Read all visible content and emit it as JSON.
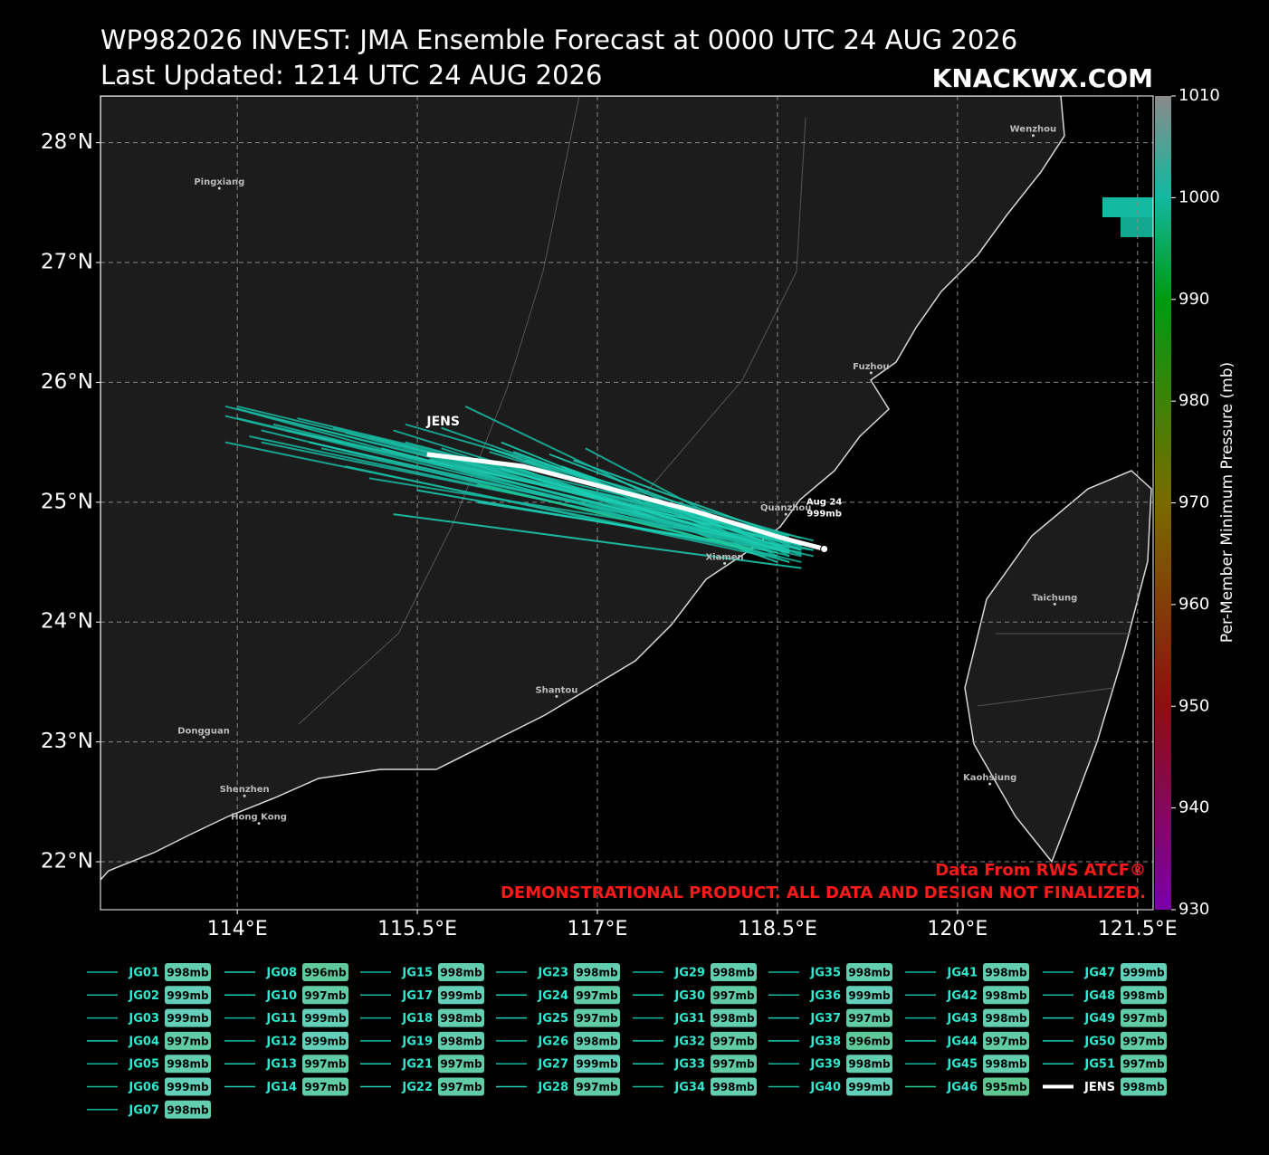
{
  "chart_data": {
    "type": "track",
    "title": "WP982026 INVEST: JMA Ensemble Forecast at 0000 UTC 24 AUG 2026",
    "subtitle": "Last Updated: 1214 UTC 24 AUG 2026",
    "brand": "KNACKWX.COM",
    "xlim": [
      112.86,
      121.63
    ],
    "ylim": [
      21.6,
      28.39
    ],
    "xticks": [
      {
        "value": 114,
        "label": "114°E"
      },
      {
        "value": 115.5,
        "label": "115.5°E"
      },
      {
        "value": 117,
        "label": "117°E"
      },
      {
        "value": 118.5,
        "label": "118.5°E"
      },
      {
        "value": 120,
        "label": "120°E"
      },
      {
        "value": 121.5,
        "label": "121.5°E"
      }
    ],
    "yticks": [
      {
        "value": 22,
        "label": "22°N"
      },
      {
        "value": 23,
        "label": "23°N"
      },
      {
        "value": 24,
        "label": "24°N"
      },
      {
        "value": 25,
        "label": "25°N"
      },
      {
        "value": 26,
        "label": "26°N"
      },
      {
        "value": 27,
        "label": "27°N"
      },
      {
        "value": 28,
        "label": "28°N"
      }
    ],
    "grid": true,
    "colorbar": {
      "label": "Per-Member Minimum Pressure (mb)",
      "lim": [
        930,
        1010
      ],
      "ticks": [
        930,
        940,
        950,
        960,
        970,
        980,
        990,
        1000,
        1010
      ],
      "colormap": [
        [
          930,
          "#7a00a8"
        ],
        [
          950,
          "#8a1010"
        ],
        [
          970,
          "#7a6a00"
        ],
        [
          990,
          "#009a10"
        ],
        [
          1000,
          "#12b8a0"
        ],
        [
          1010,
          "#8a8a8a"
        ]
      ]
    },
    "cities": [
      {
        "name": "Wenzhou",
        "lon": 120.63,
        "lat": 28.06
      },
      {
        "name": "Pingxiang",
        "lon": 113.85,
        "lat": 27.62
      },
      {
        "name": "Fuzhou",
        "lon": 119.28,
        "lat": 26.08
      },
      {
        "name": "Quanzhou",
        "lon": 118.57,
        "lat": 24.9
      },
      {
        "name": "Xiamen",
        "lon": 118.06,
        "lat": 24.49
      },
      {
        "name": "Taichung",
        "lon": 120.81,
        "lat": 24.15
      },
      {
        "name": "Shantou",
        "lon": 116.66,
        "lat": 23.38
      },
      {
        "name": "Dongguan",
        "lon": 113.72,
        "lat": 23.04
      },
      {
        "name": "Shenzhen",
        "lon": 114.06,
        "lat": 22.55
      },
      {
        "name": "Hong Kong",
        "lon": 114.18,
        "lat": 22.32
      },
      {
        "name": "Kaohsiung",
        "lon": 120.27,
        "lat": 22.65
      }
    ],
    "annotations": {
      "track_label": "JENS",
      "date": "Aug 24",
      "pressure": "999mb",
      "source": "Data From RWS ATCF®",
      "disclaimer": "DEMONSTRATIONAL PRODUCT. ALL DATA AND DESIGN NOT FINALIZED."
    },
    "series": [
      {
        "name": "JG01",
        "color": "#17b8a0",
        "x": [
          113.9,
          118.6
        ],
        "y": [
          25.8,
          24.65
        ],
        "min_pressure": 998,
        "min_pressure_label": "998mb"
      },
      {
        "name": "JG02",
        "color": "#17b8a0",
        "x": [
          114.0,
          118.7
        ],
        "y": [
          25.7,
          24.6
        ],
        "min_pressure": 999,
        "min_pressure_label": "999mb"
      },
      {
        "name": "JG03",
        "color": "#17b8a0",
        "x": [
          113.9,
          118.5
        ],
        "y": [
          25.5,
          24.55
        ],
        "min_pressure": 999,
        "min_pressure_label": "999mb"
      },
      {
        "name": "JG04",
        "color": "#1ccfb4",
        "x": [
          114.4,
          118.6
        ],
        "y": [
          25.6,
          24.7
        ],
        "min_pressure": 997,
        "min_pressure_label": "997mb"
      },
      {
        "name": "JG05",
        "color": "#17b8a0",
        "x": [
          114.9,
          118.4
        ],
        "y": [
          25.3,
          24.55
        ],
        "min_pressure": 998,
        "min_pressure_label": "998mb"
      },
      {
        "name": "JG06",
        "color": "#17b8a0",
        "x": [
          114.1,
          118.6
        ],
        "y": [
          25.75,
          24.5
        ],
        "min_pressure": 999,
        "min_pressure_label": "999mb"
      },
      {
        "name": "JG07",
        "color": "#17b8a0",
        "x": [
          115.4,
          118.7
        ],
        "y": [
          25.65,
          24.7
        ],
        "min_pressure": 998,
        "min_pressure_label": "998mb"
      },
      {
        "name": "JG08",
        "color": "#1ccfb4",
        "x": [
          116.2,
          118.4
        ],
        "y": [
          25.5,
          24.6
        ],
        "min_pressure": 996,
        "min_pressure_label": "996mb"
      },
      {
        "name": "JG10",
        "color": "#1ccfb4",
        "x": [
          116.8,
          118.6
        ],
        "y": [
          25.35,
          24.7
        ],
        "min_pressure": 997,
        "min_pressure_label": "997mb"
      },
      {
        "name": "JG11",
        "color": "#17b8a0",
        "x": [
          115.9,
          118.5
        ],
        "y": [
          25.8,
          24.55
        ],
        "min_pressure": 999,
        "min_pressure_label": "999mb"
      },
      {
        "name": "JG12",
        "color": "#17b8a0",
        "x": [
          115.1,
          118.8
        ],
        "y": [
          25.2,
          24.6
        ],
        "min_pressure": 999,
        "min_pressure_label": "999mb"
      },
      {
        "name": "JG13",
        "color": "#1ccfb4",
        "x": [
          115.3,
          118.7
        ],
        "y": [
          24.9,
          24.45
        ],
        "min_pressure": 997,
        "min_pressure_label": "997mb"
      },
      {
        "name": "JG14",
        "color": "#1ccfb4",
        "x": [
          116.0,
          118.5
        ],
        "y": [
          25.0,
          24.6
        ],
        "min_pressure": 997,
        "min_pressure_label": "997mb"
      },
      {
        "name": "JG15",
        "color": "#17b8a0",
        "x": [
          115.7,
          118.6
        ],
        "y": [
          25.45,
          24.5
        ],
        "min_pressure": 998,
        "min_pressure_label": "998mb"
      },
      {
        "name": "JG17",
        "color": "#17b8a0",
        "x": [
          114.0,
          118.9
        ],
        "y": [
          25.8,
          24.62
        ],
        "min_pressure": 999,
        "min_pressure_label": "999mb"
      },
      {
        "name": "JG18",
        "color": "#17b8a0",
        "x": [
          114.2,
          118.7
        ],
        "y": [
          25.6,
          24.5
        ],
        "min_pressure": 998,
        "min_pressure_label": "998mb"
      },
      {
        "name": "JG19",
        "color": "#17b8a0",
        "x": [
          115.6,
          118.6
        ],
        "y": [
          25.4,
          24.72
        ],
        "min_pressure": 998,
        "min_pressure_label": "998mb"
      },
      {
        "name": "JG21",
        "color": "#1ccfb4",
        "x": [
          116.1,
          118.5
        ],
        "y": [
          25.45,
          24.6
        ],
        "min_pressure": 997,
        "min_pressure_label": "997mb"
      },
      {
        "name": "JG22",
        "color": "#1ccfb4",
        "x": [
          115.1,
          118.4
        ],
        "y": [
          25.55,
          24.65
        ],
        "min_pressure": 997,
        "min_pressure_label": "997mb"
      },
      {
        "name": "JG23",
        "color": "#17b8a0",
        "x": [
          113.9,
          118.7
        ],
        "y": [
          25.72,
          24.55
        ],
        "min_pressure": 998,
        "min_pressure_label": "998mb"
      },
      {
        "name": "JG24",
        "color": "#1ccfb4",
        "x": [
          114.6,
          118.6
        ],
        "y": [
          25.5,
          24.6
        ],
        "min_pressure": 997,
        "min_pressure_label": "997mb"
      },
      {
        "name": "JG25",
        "color": "#1ccfb4",
        "x": [
          116.5,
          118.5
        ],
        "y": [
          25.2,
          24.6
        ],
        "min_pressure": 997,
        "min_pressure_label": "997mb"
      },
      {
        "name": "JG26",
        "color": "#17b8a0",
        "x": [
          116.9,
          118.6
        ],
        "y": [
          25.45,
          24.55
        ],
        "min_pressure": 998,
        "min_pressure_label": "998mb"
      },
      {
        "name": "JG27",
        "color": "#17b8a0",
        "x": [
          115.9,
          118.8
        ],
        "y": [
          25.2,
          24.55
        ],
        "min_pressure": 999,
        "min_pressure_label": "999mb"
      },
      {
        "name": "JG28",
        "color": "#1ccfb4",
        "x": [
          116.3,
          118.5
        ],
        "y": [
          25.3,
          24.5
        ],
        "min_pressure": 997,
        "min_pressure_label": "997mb"
      },
      {
        "name": "JG29",
        "color": "#17b8a0",
        "x": [
          114.3,
          118.5
        ],
        "y": [
          25.65,
          24.62
        ],
        "min_pressure": 998,
        "min_pressure_label": "998mb"
      },
      {
        "name": "JG30",
        "color": "#1ccfb4",
        "x": [
          115.2,
          118.6
        ],
        "y": [
          25.45,
          24.58
        ],
        "min_pressure": 997,
        "min_pressure_label": "997mb"
      },
      {
        "name": "JG31",
        "color": "#17b8a0",
        "x": [
          114.8,
          118.7
        ],
        "y": [
          25.62,
          24.66
        ],
        "min_pressure": 998,
        "min_pressure_label": "998mb"
      },
      {
        "name": "JG32",
        "color": "#1ccfb4",
        "x": [
          116.0,
          118.4
        ],
        "y": [
          25.38,
          24.62
        ],
        "min_pressure": 997,
        "min_pressure_label": "997mb"
      },
      {
        "name": "JG33",
        "color": "#1ccfb4",
        "x": [
          116.6,
          118.7
        ],
        "y": [
          25.4,
          24.6
        ],
        "min_pressure": 997,
        "min_pressure_label": "997mb"
      },
      {
        "name": "JG34",
        "color": "#17b8a0",
        "x": [
          114.5,
          118.8
        ],
        "y": [
          25.7,
          24.68
        ],
        "min_pressure": 998,
        "min_pressure_label": "998mb"
      },
      {
        "name": "JG35",
        "color": "#17b8a0",
        "x": [
          115.8,
          118.6
        ],
        "y": [
          25.3,
          24.55
        ],
        "min_pressure": 998,
        "min_pressure_label": "998mb"
      },
      {
        "name": "JG36",
        "color": "#17b8a0",
        "x": [
          114.1,
          118.5
        ],
        "y": [
          25.55,
          24.6
        ],
        "min_pressure": 999,
        "min_pressure_label": "999mb"
      },
      {
        "name": "JG37",
        "color": "#1ccfb4",
        "x": [
          116.4,
          118.7
        ],
        "y": [
          25.35,
          24.64
        ],
        "min_pressure": 997,
        "min_pressure_label": "997mb"
      },
      {
        "name": "JG38",
        "color": "#1ccfb4",
        "x": [
          115.5,
          118.5
        ],
        "y": [
          25.1,
          24.58
        ],
        "min_pressure": 996,
        "min_pressure_label": "996mb"
      },
      {
        "name": "JG39",
        "color": "#17b8a0",
        "x": [
          114.7,
          118.6
        ],
        "y": [
          25.45,
          24.62
        ],
        "min_pressure": 998,
        "min_pressure_label": "998mb"
      },
      {
        "name": "JG40",
        "color": "#17b8a0",
        "x": [
          115.4,
          118.8
        ],
        "y": [
          25.5,
          24.6
        ],
        "min_pressure": 999,
        "min_pressure_label": "999mb"
      },
      {
        "name": "JG41",
        "color": "#17b8a0",
        "x": [
          116.1,
          118.6
        ],
        "y": [
          25.42,
          24.66
        ],
        "min_pressure": 998,
        "min_pressure_label": "998mb"
      },
      {
        "name": "JG42",
        "color": "#17b8a0",
        "x": [
          114.9,
          118.5
        ],
        "y": [
          25.58,
          24.64
        ],
        "min_pressure": 998,
        "min_pressure_label": "998mb"
      },
      {
        "name": "JG43",
        "color": "#17b8a0",
        "x": [
          115.7,
          118.7
        ],
        "y": [
          25.62,
          24.56
        ],
        "min_pressure": 998,
        "min_pressure_label": "998mb"
      },
      {
        "name": "JG44",
        "color": "#1ccfb4",
        "x": [
          116.7,
          118.6
        ],
        "y": [
          25.3,
          24.62
        ],
        "min_pressure": 997,
        "min_pressure_label": "997mb"
      },
      {
        "name": "JG45",
        "color": "#17b8a0",
        "x": [
          114.2,
          118.7
        ],
        "y": [
          25.5,
          24.58
        ],
        "min_pressure": 998,
        "min_pressure_label": "998mb"
      },
      {
        "name": "JG46",
        "color": "#1fc890",
        "x": [
          116.0,
          118.3
        ],
        "y": [
          25.15,
          24.6
        ],
        "min_pressure": 995,
        "min_pressure_label": "995mb"
      },
      {
        "name": "JG47",
        "color": "#17b8a0",
        "x": [
          114.0,
          118.6
        ],
        "y": [
          25.78,
          24.62
        ],
        "min_pressure": 999,
        "min_pressure_label": "999mb"
      },
      {
        "name": "JG48",
        "color": "#17b8a0",
        "x": [
          115.3,
          118.5
        ],
        "y": [
          25.6,
          24.6
        ],
        "min_pressure": 998,
        "min_pressure_label": "998mb"
      },
      {
        "name": "JG49",
        "color": "#1ccfb4",
        "x": [
          116.3,
          118.6
        ],
        "y": [
          25.42,
          24.6
        ],
        "min_pressure": 997,
        "min_pressure_label": "997mb"
      },
      {
        "name": "JG50",
        "color": "#1ccfb4",
        "x": [
          115.6,
          118.7
        ],
        "y": [
          25.36,
          24.64
        ],
        "min_pressure": 997,
        "min_pressure_label": "997mb"
      },
      {
        "name": "JG51",
        "color": "#1ccfb4",
        "x": [
          116.2,
          118.6
        ],
        "y": [
          25.28,
          24.58
        ],
        "min_pressure": 997,
        "min_pressure_label": "997mb"
      },
      {
        "name": "JENS",
        "color": "#ffffff",
        "x": [
          115.58,
          116.38,
          117.0,
          117.83,
          118.51,
          118.89
        ],
        "y": [
          25.4,
          25.3,
          25.14,
          24.92,
          24.71,
          24.61
        ],
        "min_pressure": 998,
        "min_pressure_label": "998mb"
      }
    ]
  }
}
